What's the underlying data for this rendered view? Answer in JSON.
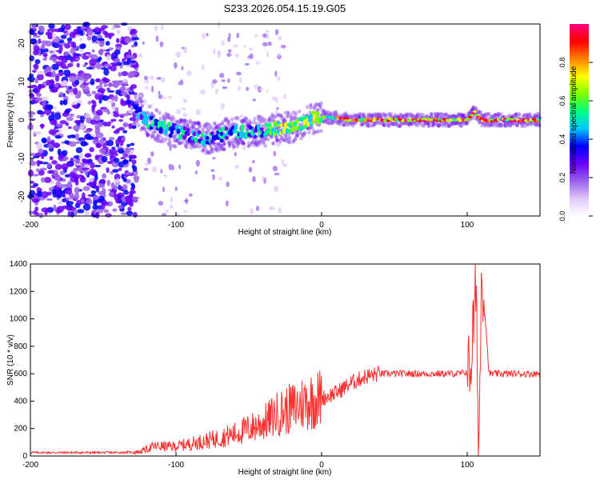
{
  "chart_data": [
    {
      "type": "heatmap",
      "title": "S233.2026.054.15.19.G05",
      "xlabel": "Height of straight line (km)",
      "ylabel": "Frequency (Hz)",
      "xlim": [
        -200,
        150
      ],
      "ylim": [
        -25,
        25
      ],
      "xticks": [
        -200,
        -100,
        0,
        100
      ],
      "xtick_labels": [
        "-200",
        "-100",
        "0",
        "100"
      ],
      "yticks": [
        20,
        10,
        0,
        -10,
        -20
      ],
      "ytick_labels": [
        "20",
        "10",
        "0",
        "-10",
        "-20"
      ],
      "colorbar": {
        "label": "Normalized spectral amplitude",
        "range": [
          0,
          1
        ],
        "ticks": [
          0.0,
          0.2,
          0.4,
          0.6,
          0.8
        ],
        "tick_labels": [
          "0.0",
          "0.2",
          "0.4",
          "0.6",
          "0.8"
        ],
        "colors": [
          "#ffffff",
          "#e0c8f8",
          "#9a60e8",
          "#6a00ff",
          "#0000ff",
          "#00c8ff",
          "#00ff80",
          "#80ff00",
          "#ffff00",
          "#ff8000",
          "#ff0000",
          "#ff0080"
        ]
      },
      "ridge_frequency_hz": {
        "x": [
          -128,
          -120,
          -110,
          -100,
          -90,
          -80,
          -70,
          -60,
          -50,
          -40,
          -30,
          -20,
          -10,
          0,
          10,
          20,
          40,
          60,
          80,
          100,
          105,
          110,
          130,
          150
        ],
        "y": [
          3,
          0,
          -2,
          -3,
          -4,
          -5,
          -4,
          -3,
          -3,
          -3,
          -2,
          -2,
          0,
          1,
          0.5,
          0,
          0,
          0,
          0,
          0,
          2,
          0,
          0,
          0
        ]
      }
    },
    {
      "type": "line",
      "title": "",
      "xlabel": "Height of straight line (km)",
      "ylabel": "SNR (10 * v/v)",
      "xlim": [
        -200,
        150
      ],
      "ylim": [
        0,
        1400
      ],
      "xticks": [
        -200,
        -100,
        0,
        100
      ],
      "xtick_labels": [
        "-200",
        "-100",
        "0",
        "100"
      ],
      "yticks": [
        0,
        200,
        400,
        600,
        800,
        1000,
        1200,
        1400
      ],
      "ytick_labels": [
        "0",
        "200",
        "400",
        "600",
        "800",
        "1000",
        "1200",
        "1400"
      ],
      "color": "#ff3030",
      "series": [
        {
          "name": "SNR",
          "x": [
            -200,
            -180,
            -160,
            -140,
            -125,
            -115,
            -100,
            -90,
            -80,
            -70,
            -60,
            -50,
            -40,
            -30,
            -20,
            -10,
            0,
            10,
            20,
            30,
            40,
            60,
            80,
            95,
            102,
            106,
            108,
            110,
            115,
            130,
            150
          ],
          "y": [
            25,
            25,
            25,
            25,
            30,
            70,
            70,
            90,
            110,
            130,
            160,
            200,
            240,
            310,
            350,
            400,
            420,
            460,
            530,
            580,
            600,
            600,
            600,
            600,
            620,
            1200,
            50,
            1400,
            600,
            600,
            600
          ]
        }
      ]
    }
  ]
}
